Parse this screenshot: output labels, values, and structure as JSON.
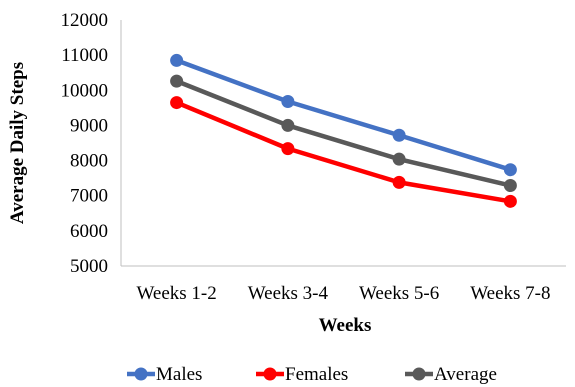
{
  "chart_data": {
    "type": "line",
    "categories": [
      "Weeks 1-2",
      "Weeks 3-4",
      "Weeks 5-6",
      "Weeks 7-8"
    ],
    "series": [
      {
        "name": "Males",
        "values": [
          10850,
          9680,
          8720,
          7740
        ],
        "color": "#4472C4"
      },
      {
        "name": "Females",
        "values": [
          9650,
          8340,
          7380,
          6840
        ],
        "color": "#FF0000"
      },
      {
        "name": "Average",
        "values": [
          10260,
          9000,
          8040,
          7290
        ],
        "color": "#595959"
      }
    ],
    "xlabel": "Weeks",
    "ylabel": "Average Daily Steps",
    "ylim": [
      5000,
      12000
    ],
    "yticks": [
      "5000",
      "6000",
      "7000",
      "8000",
      "9000",
      "10000",
      "11000",
      "12000"
    ],
    "grid": false,
    "legend_position": "bottom"
  }
}
